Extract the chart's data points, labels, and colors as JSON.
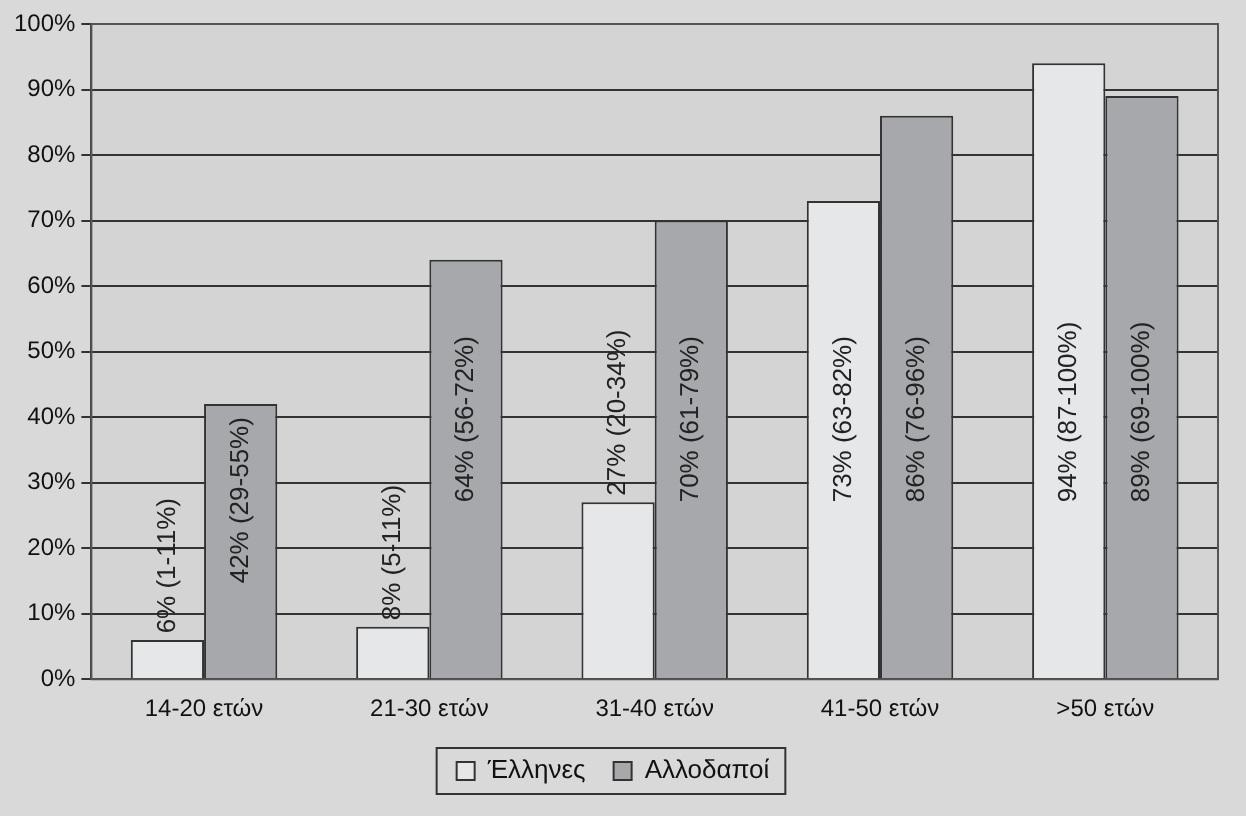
{
  "chart_data": {
    "type": "bar",
    "categories": [
      "14-20 ετών",
      "21-30 ετών",
      "31-40 ετών",
      "41-50 ετών",
      ">50 ετών"
    ],
    "series": [
      {
        "name": "Έλληνες",
        "color": "#e6e7e9",
        "values": [
          6,
          8,
          27,
          73,
          94
        ],
        "value_labels": [
          "6% (1-11%)",
          "8% (5-11%)",
          "27% (20-34%)",
          "73% (63-82%)",
          "94% (87-100%)"
        ]
      },
      {
        "name": "Αλλοδαποί",
        "color": "#a7a8ac",
        "values": [
          42,
          64,
          70,
          86,
          89
        ],
        "value_labels": [
          "42% (29-55%)",
          "64% (56-72%)",
          "70% (61-79%)",
          "86% (76-96%)",
          "89% (69-100%)"
        ]
      }
    ],
    "ylim": [
      0,
      100
    ],
    "yticks": [
      {
        "value": 0,
        "label": "0%"
      },
      {
        "value": 10,
        "label": "10%"
      },
      {
        "value": 20,
        "label": "20%"
      },
      {
        "value": 30,
        "label": "30%"
      },
      {
        "value": 40,
        "label": "40%"
      },
      {
        "value": 50,
        "label": "50%"
      },
      {
        "value": 60,
        "label": "60%"
      },
      {
        "value": 70,
        "label": "70%"
      },
      {
        "value": 80,
        "label": "80%"
      },
      {
        "value": 90,
        "label": "90%"
      },
      {
        "value": 100,
        "label": "100%"
      }
    ],
    "grid": "y",
    "legend": "bottom"
  }
}
